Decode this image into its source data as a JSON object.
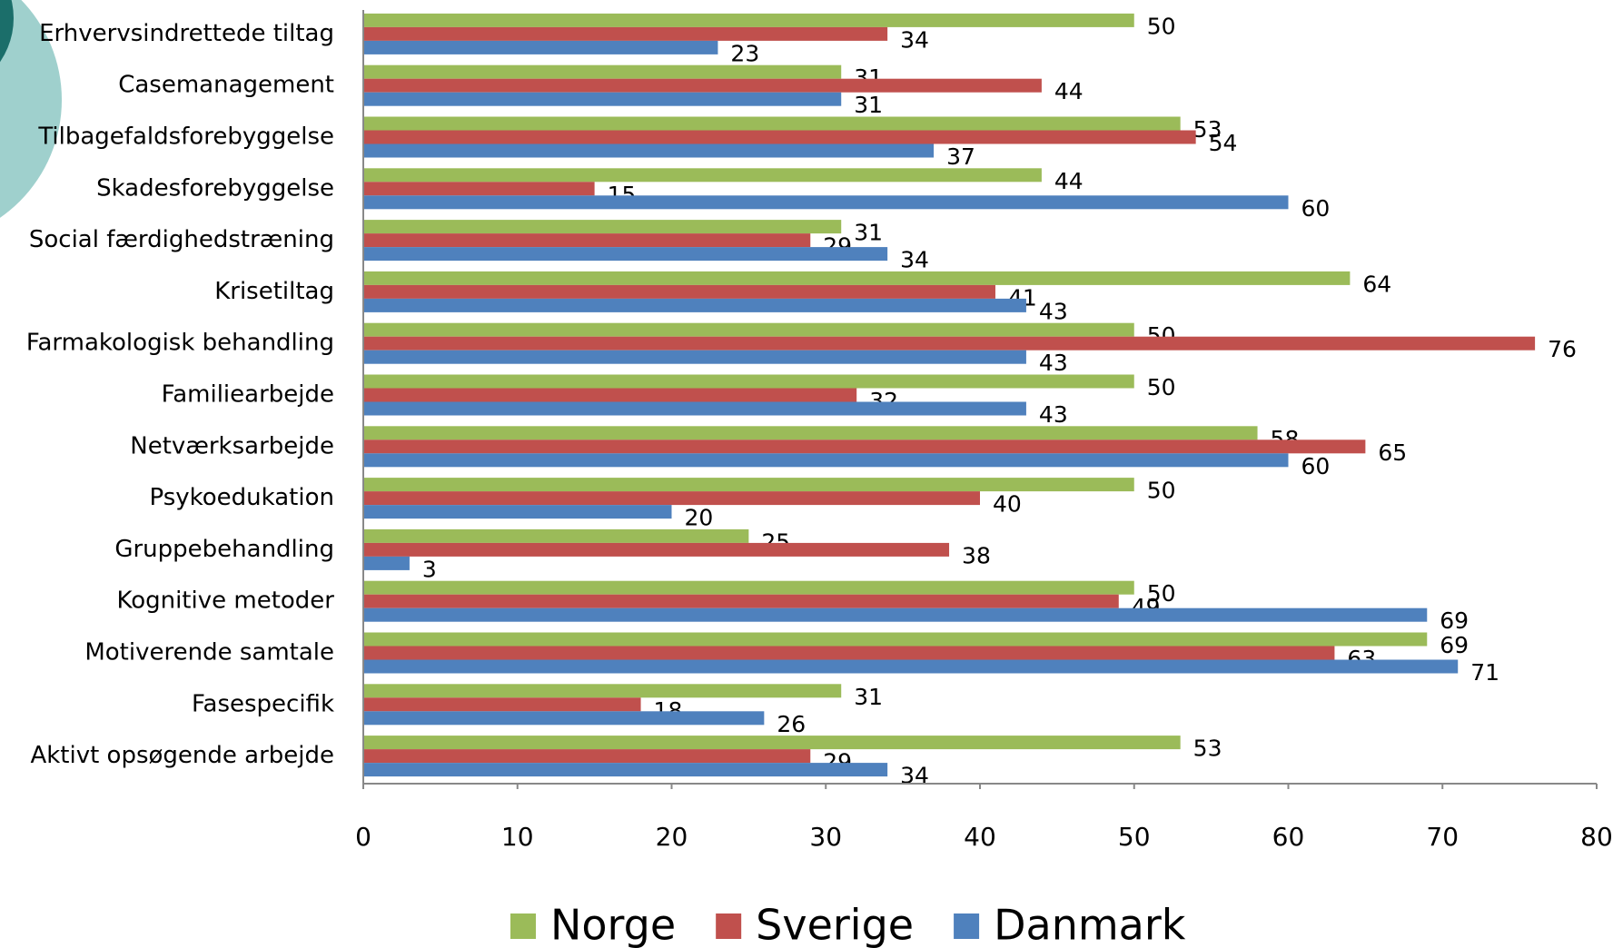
{
  "chart_data": {
    "type": "hbar",
    "categories": [
      "Erhvervsindrettede tiltag",
      "Casemanagement",
      "Tilbagefaldsforebyggelse",
      "Skadesforebyggelse",
      "Social færdighedstræning",
      "Krisetiltag",
      "Farmakologisk behandling",
      "Familiearbejde",
      "Netværksarbejde",
      "Psykoedukation",
      "Gruppebehandling",
      "Kognitive metoder",
      "Motiverende samtale",
      "Fasespecifik",
      "Aktivt opsøgende arbejde"
    ],
    "series": [
      {
        "name": "Norge",
        "color": "#9bbb59",
        "values": [
          50,
          31,
          53,
          44,
          31,
          64,
          50,
          50,
          58,
          50,
          25,
          50,
          69,
          31,
          53
        ]
      },
      {
        "name": "Sverige",
        "color": "#c0504d",
        "values": [
          34,
          44,
          54,
          15,
          29,
          41,
          76,
          32,
          65,
          40,
          38,
          49,
          63,
          18,
          29
        ]
      },
      {
        "name": "Danmark",
        "color": "#4f81bd",
        "values": [
          23,
          31,
          37,
          60,
          34,
          43,
          43,
          43,
          60,
          20,
          3,
          69,
          71,
          26,
          34
        ]
      }
    ],
    "xlim": [
      0,
      80
    ],
    "xticks": [
      0,
      10,
      20,
      30,
      40,
      50,
      60,
      70,
      80
    ],
    "legend": "bottom"
  }
}
